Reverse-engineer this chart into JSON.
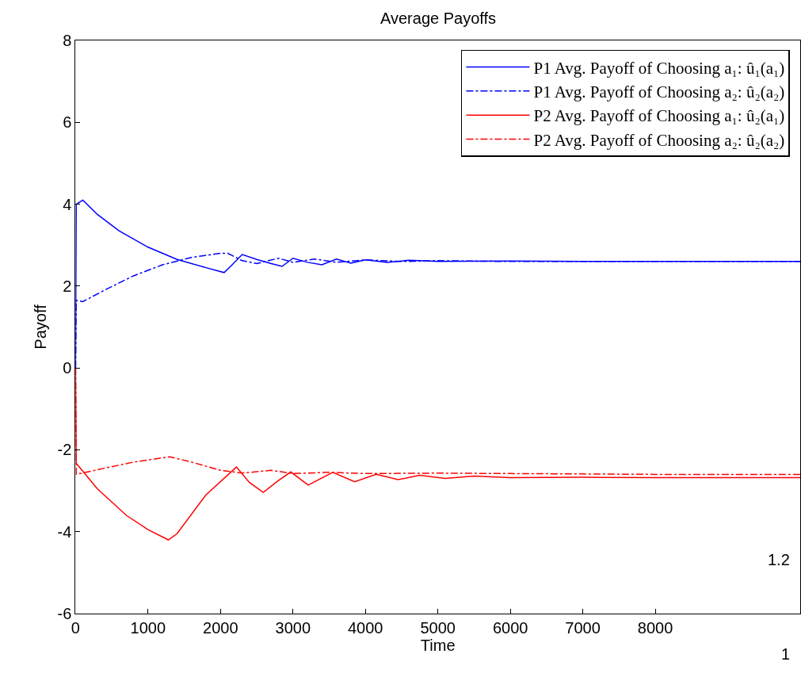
{
  "chart_data": [
    {
      "type": "line",
      "title": "Average Payoffs",
      "xlabel": "Time",
      "ylabel": "Payoff",
      "xlim": [
        0,
        10000
      ],
      "ylim": [
        -6,
        8
      ],
      "xticks": [
        0,
        1000,
        2000,
        3000,
        4000,
        5000,
        6000,
        7000,
        8000
      ],
      "yticks": [
        -6,
        -4,
        -2,
        0,
        2,
        4,
        6,
        8
      ],
      "legend": "top right",
      "series": [
        {
          "name": "P1 Avg. Payoff of Choosing a₁: û₁(a₁)",
          "color": "#0000ff",
          "line_style": "solid",
          "x": [
            0,
            10,
            100,
            300,
            600,
            1000,
            1400,
            1800,
            2050,
            2150,
            2300,
            2500,
            2700,
            2850,
            3000,
            3200,
            3400,
            3600,
            3800,
            4000,
            4300,
            4600,
            5000,
            6000,
            7000,
            8000,
            9000,
            10000
          ],
          "values": [
            0,
            4.0,
            4.1,
            3.75,
            3.35,
            2.95,
            2.65,
            2.45,
            2.33,
            2.5,
            2.77,
            2.65,
            2.55,
            2.48,
            2.68,
            2.58,
            2.52,
            2.66,
            2.56,
            2.64,
            2.58,
            2.63,
            2.6,
            2.61,
            2.6,
            2.6,
            2.6,
            2.6
          ]
        },
        {
          "name": "P1 Avg. Payoff of Choosing a₂: û₂(a₂)",
          "color": "#0000ff",
          "line_style": "dashdot",
          "x": [
            0,
            10,
            100,
            400,
            800,
            1200,
            1600,
            2000,
            2100,
            2300,
            2500,
            2800,
            3000,
            3300,
            3600,
            4000,
            4500,
            5000,
            6000,
            8000,
            10000
          ],
          "values": [
            0,
            1.65,
            1.62,
            1.9,
            2.25,
            2.52,
            2.7,
            2.8,
            2.8,
            2.62,
            2.55,
            2.68,
            2.58,
            2.66,
            2.58,
            2.64,
            2.6,
            2.62,
            2.6,
            2.6,
            2.6
          ]
        },
        {
          "name": "P2 Avg. Payoff of Choosing a₁: û₂(a₁)",
          "color": "#ff0000",
          "line_style": "solid",
          "x": [
            0,
            10,
            300,
            700,
            1000,
            1280,
            1400,
            1800,
            2220,
            2400,
            2590,
            2800,
            2970,
            3210,
            3550,
            3850,
            4150,
            4450,
            4750,
            5100,
            5500,
            6000,
            7000,
            8000,
            10000
          ],
          "values": [
            0,
            -2.33,
            -2.95,
            -3.6,
            -3.95,
            -4.2,
            -4.05,
            -3.1,
            -2.42,
            -2.8,
            -3.04,
            -2.75,
            -2.54,
            -2.86,
            -2.55,
            -2.78,
            -2.6,
            -2.73,
            -2.62,
            -2.7,
            -2.64,
            -2.68,
            -2.67,
            -2.68,
            -2.68
          ]
        },
        {
          "name": "P2 Avg. Payoff of Choosing a₂: û₂(a₂)",
          "color": "#ff0000",
          "line_style": "dashdot",
          "x": [
            0,
            10,
            400,
            800,
            1300,
            1600,
            2000,
            2300,
            2700,
            3000,
            3500,
            4000,
            5000,
            6000,
            8000,
            10000
          ],
          "values": [
            0,
            -2.6,
            -2.45,
            -2.3,
            -2.17,
            -2.3,
            -2.5,
            -2.57,
            -2.5,
            -2.58,
            -2.55,
            -2.58,
            -2.57,
            -2.58,
            -2.6,
            -2.6
          ]
        }
      ]
    },
    {
      "type": "other",
      "annotations": [
        "1.2",
        "1"
      ]
    }
  ]
}
